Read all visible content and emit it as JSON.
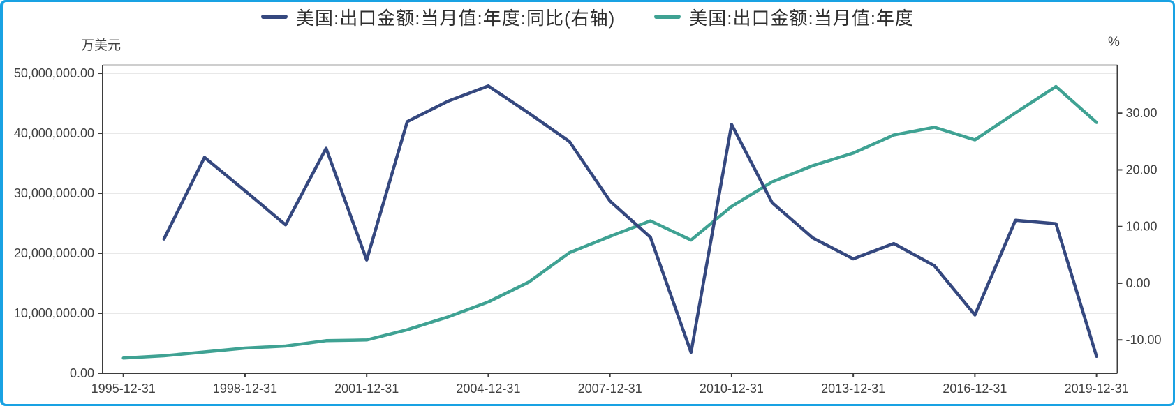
{
  "legend": [
    {
      "label": "美国:出口金额:当月值:年度:同比(右轴)",
      "color": "#35487F"
    },
    {
      "label": "美国:出口金额:当月值:年度",
      "color": "#3FA293"
    }
  ],
  "chart_data": {
    "type": "line",
    "title": "",
    "legend_position": "top-center",
    "grid": "horizontal-only",
    "x_years": [
      1995,
      1996,
      1997,
      1998,
      1999,
      2000,
      2001,
      2002,
      2003,
      2004,
      2005,
      2006,
      2007,
      2008,
      2009,
      2010,
      2011,
      2012,
      2013,
      2014,
      2015,
      2016,
      2017,
      2018,
      2019
    ],
    "series": [
      {
        "name": "美国:出口金额:当月值:年度:同比(右轴)",
        "axis": "right",
        "color": "#35487F",
        "values": [
          null,
          7.8,
          22.2,
          16.3,
          10.3,
          23.8,
          4.1,
          28.5,
          32.1,
          34.8,
          30.0,
          25.0,
          14.5,
          8.1,
          -12.2,
          28.0,
          14.2,
          8.0,
          4.3,
          7.0,
          3.1,
          -5.6,
          11.1,
          10.5,
          -12.9
        ]
      },
      {
        "name": "美国:出口金额:当月值:年度",
        "axis": "left",
        "color": "#3FA293",
        "values": [
          2520000,
          2910000,
          3550000,
          4190000,
          4530000,
          5430000,
          5550000,
          7240000,
          9360000,
          11880000,
          15200000,
          20100000,
          22800000,
          25400000,
          22200000,
          27800000,
          31900000,
          34600000,
          36700000,
          39700000,
          41000000,
          38900000,
          43400000,
          47800000,
          41800000
        ]
      }
    ],
    "left_axis": {
      "title": "万美元",
      "range": [
        0,
        51400000
      ],
      "tick_values": [
        50000000,
        40000000,
        30000000,
        20000000,
        10000000,
        0
      ],
      "tick_labels": [
        "50,000,000.00",
        "40,000,000.00",
        "30,000,000.00",
        "20,000,000.00",
        "10,000,000.00",
        "0.00"
      ]
    },
    "right_axis": {
      "title": "%",
      "range": [
        -15.88,
        38.52
      ],
      "tick_values": [
        30,
        20,
        10,
        0,
        -10
      ],
      "tick_labels": [
        "30.00",
        "20.00",
        "10.00",
        "0.00",
        "-10.00"
      ]
    },
    "x_axis": {
      "tick_years": [
        1995,
        1998,
        2001,
        2004,
        2007,
        2010,
        2013,
        2016,
        2019
      ],
      "tick_labels": [
        "1995-12-31",
        "1998-12-31",
        "2001-12-31",
        "2004-12-31",
        "2007-12-31",
        "2010-12-31",
        "2013-12-31",
        "2016-12-31",
        "2019-12-31"
      ]
    }
  },
  "colors": {
    "frame_border": "#19A2E3",
    "axis_line": "#3D3D3D",
    "gridline": "#E8E8E8",
    "plot_top_border": "#BDBDBD",
    "tick_text": "#404040"
  }
}
